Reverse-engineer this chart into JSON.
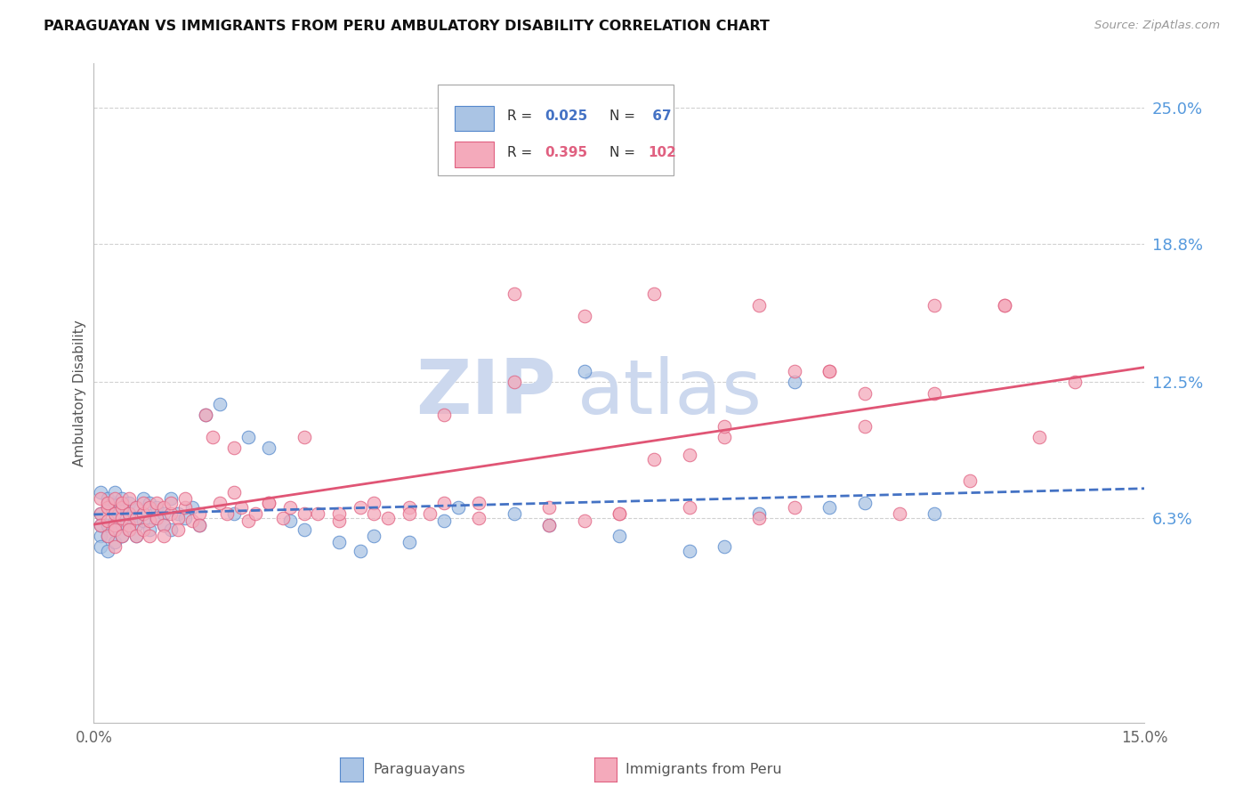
{
  "title": "PARAGUAYAN VS IMMIGRANTS FROM PERU AMBULATORY DISABILITY CORRELATION CHART",
  "source": "Source: ZipAtlas.com",
  "ylabel": "Ambulatory Disability",
  "color_paraguayan_fill": "#aac4e4",
  "color_paraguayan_edge": "#5588cc",
  "color_peru_fill": "#f4aabb",
  "color_peru_edge": "#e06080",
  "color_line_paraguayan": "#4472c4",
  "color_line_peru": "#e05575",
  "color_ytick_label": "#5599dd",
  "color_grid": "#cccccc",
  "color_title": "#111111",
  "color_source": "#999999",
  "color_watermark": "#ccd8ee",
  "background": "#ffffff",
  "xmin": 0.0,
  "xmax": 0.15,
  "ymin": -0.03,
  "ymax": 0.27,
  "ytick_vals": [
    0.063,
    0.125,
    0.188,
    0.25
  ],
  "ytick_labels": [
    "6.3%",
    "12.5%",
    "18.8%",
    "25.0%"
  ],
  "paraguayan_x": [
    0.001,
    0.001,
    0.001,
    0.001,
    0.001,
    0.002,
    0.002,
    0.002,
    0.002,
    0.002,
    0.002,
    0.003,
    0.003,
    0.003,
    0.003,
    0.003,
    0.003,
    0.004,
    0.004,
    0.004,
    0.004,
    0.005,
    0.005,
    0.005,
    0.005,
    0.006,
    0.006,
    0.006,
    0.007,
    0.007,
    0.007,
    0.008,
    0.008,
    0.009,
    0.009,
    0.01,
    0.01,
    0.011,
    0.011,
    0.012,
    0.013,
    0.014,
    0.015,
    0.016,
    0.018,
    0.02,
    0.022,
    0.025,
    0.028,
    0.03,
    0.035,
    0.038,
    0.04,
    0.045,
    0.05,
    0.052,
    0.06,
    0.065,
    0.07,
    0.075,
    0.085,
    0.09,
    0.095,
    0.1,
    0.105,
    0.11,
    0.12
  ],
  "paraguayan_y": [
    0.055,
    0.065,
    0.06,
    0.075,
    0.05,
    0.068,
    0.055,
    0.07,
    0.06,
    0.072,
    0.048,
    0.062,
    0.058,
    0.07,
    0.065,
    0.052,
    0.075,
    0.06,
    0.068,
    0.055,
    0.072,
    0.063,
    0.07,
    0.058,
    0.065,
    0.06,
    0.055,
    0.068,
    0.072,
    0.062,
    0.065,
    0.058,
    0.07,
    0.063,
    0.068,
    0.065,
    0.06,
    0.072,
    0.058,
    0.065,
    0.063,
    0.068,
    0.06,
    0.11,
    0.115,
    0.065,
    0.1,
    0.095,
    0.062,
    0.058,
    0.052,
    0.048,
    0.055,
    0.052,
    0.062,
    0.068,
    0.065,
    0.06,
    0.13,
    0.055,
    0.048,
    0.05,
    0.065,
    0.125,
    0.068,
    0.07,
    0.065
  ],
  "peru_x": [
    0.001,
    0.001,
    0.001,
    0.002,
    0.002,
    0.002,
    0.002,
    0.003,
    0.003,
    0.003,
    0.003,
    0.003,
    0.004,
    0.004,
    0.004,
    0.004,
    0.005,
    0.005,
    0.005,
    0.005,
    0.006,
    0.006,
    0.006,
    0.007,
    0.007,
    0.007,
    0.008,
    0.008,
    0.008,
    0.009,
    0.009,
    0.01,
    0.01,
    0.01,
    0.011,
    0.011,
    0.012,
    0.012,
    0.013,
    0.013,
    0.014,
    0.015,
    0.015,
    0.016,
    0.017,
    0.018,
    0.019,
    0.02,
    0.021,
    0.022,
    0.023,
    0.025,
    0.027,
    0.028,
    0.03,
    0.032,
    0.035,
    0.038,
    0.04,
    0.042,
    0.045,
    0.048,
    0.05,
    0.055,
    0.06,
    0.065,
    0.07,
    0.075,
    0.08,
    0.085,
    0.09,
    0.095,
    0.1,
    0.105,
    0.11,
    0.115,
    0.12,
    0.125,
    0.13,
    0.135,
    0.14,
    0.02,
    0.025,
    0.03,
    0.04,
    0.05,
    0.06,
    0.07,
    0.08,
    0.09,
    0.1,
    0.11,
    0.12,
    0.13,
    0.035,
    0.045,
    0.055,
    0.065,
    0.075,
    0.085,
    0.095,
    0.105
  ],
  "peru_y": [
    0.065,
    0.06,
    0.072,
    0.055,
    0.068,
    0.062,
    0.07,
    0.06,
    0.065,
    0.058,
    0.072,
    0.05,
    0.063,
    0.068,
    0.055,
    0.07,
    0.06,
    0.065,
    0.058,
    0.072,
    0.063,
    0.068,
    0.055,
    0.065,
    0.058,
    0.07,
    0.062,
    0.068,
    0.055,
    0.063,
    0.07,
    0.06,
    0.068,
    0.055,
    0.065,
    0.07,
    0.063,
    0.058,
    0.068,
    0.072,
    0.062,
    0.065,
    0.06,
    0.11,
    0.1,
    0.07,
    0.065,
    0.095,
    0.068,
    0.062,
    0.065,
    0.07,
    0.063,
    0.068,
    0.1,
    0.065,
    0.062,
    0.068,
    0.07,
    0.063,
    0.068,
    0.065,
    0.07,
    0.063,
    0.165,
    0.068,
    0.062,
    0.065,
    0.165,
    0.068,
    0.1,
    0.063,
    0.068,
    0.13,
    0.12,
    0.065,
    0.16,
    0.08,
    0.16,
    0.1,
    0.125,
    0.075,
    0.07,
    0.065,
    0.065,
    0.11,
    0.125,
    0.155,
    0.09,
    0.105,
    0.13,
    0.105,
    0.12,
    0.16,
    0.065,
    0.065,
    0.07,
    0.06,
    0.065,
    0.092,
    0.16,
    0.13
  ]
}
